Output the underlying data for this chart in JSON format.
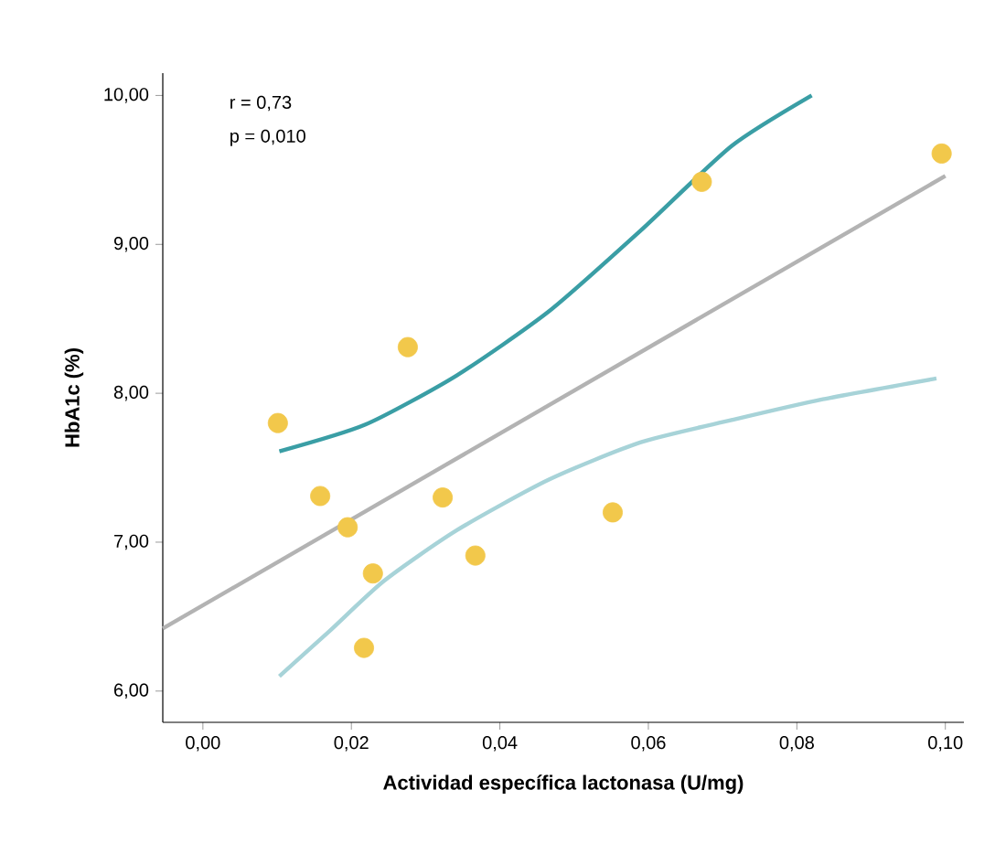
{
  "chart_data": {
    "type": "scatter",
    "xlabel": "Actividad específica lactonasa (U/mg)",
    "ylabel": "HbA1c (%)",
    "annotations": [
      "r = 0,73",
      "p = 0,010"
    ],
    "xlim": [
      -0.0054,
      0.1025
    ],
    "ylim": [
      5.79,
      10.15
    ],
    "xticks": [
      {
        "value": 0,
        "label": "0,00"
      },
      {
        "value": 0.02,
        "label": "0,02"
      },
      {
        "value": 0.04,
        "label": "0,04"
      },
      {
        "value": 0.06,
        "label": "0,06"
      },
      {
        "value": 0.08,
        "label": "0,08"
      },
      {
        "value": 0.1,
        "label": "0,10"
      }
    ],
    "yticks": [
      {
        "value": 6,
        "label": "6,00"
      },
      {
        "value": 7,
        "label": "7,00"
      },
      {
        "value": 8,
        "label": "8,00"
      },
      {
        "value": 9,
        "label": "9,00"
      },
      {
        "value": 10,
        "label": "10,00"
      }
    ],
    "grid": false,
    "series": [
      {
        "type": "line",
        "color": "#b3b3b3",
        "x": [
          -0.0054,
          0.1
        ],
        "values": [
          6.42,
          9.46
        ]
      },
      {
        "type": "line",
        "color": "#3a9ea5",
        "x": [
          0.0103,
          0.0219,
          0.0342,
          0.0466,
          0.0589,
          0.0712,
          0.082
        ],
        "values": [
          7.61,
          7.79,
          8.12,
          8.55,
          9.09,
          9.66,
          10.0
        ]
      },
      {
        "type": "line",
        "color": "#a7d3d8",
        "x": [
          0.0103,
          0.017,
          0.0244,
          0.0342,
          0.0466,
          0.0589,
          0.0712,
          0.0835,
          0.0988
        ],
        "values": [
          6.1,
          6.4,
          6.74,
          7.08,
          7.42,
          7.67,
          7.82,
          7.96,
          8.1
        ]
      },
      {
        "type": "scatter",
        "marker": "circle",
        "color": "#f2c84b",
        "x": [
          0.0101,
          0.0158,
          0.0195,
          0.0229,
          0.0217,
          0.0276,
          0.0323,
          0.0367,
          0.0552,
          0.0672,
          0.0995
        ],
        "values": [
          7.8,
          7.31,
          7.1,
          6.79,
          6.29,
          8.31,
          7.3,
          6.91,
          7.2,
          9.42,
          9.61
        ]
      }
    ]
  }
}
